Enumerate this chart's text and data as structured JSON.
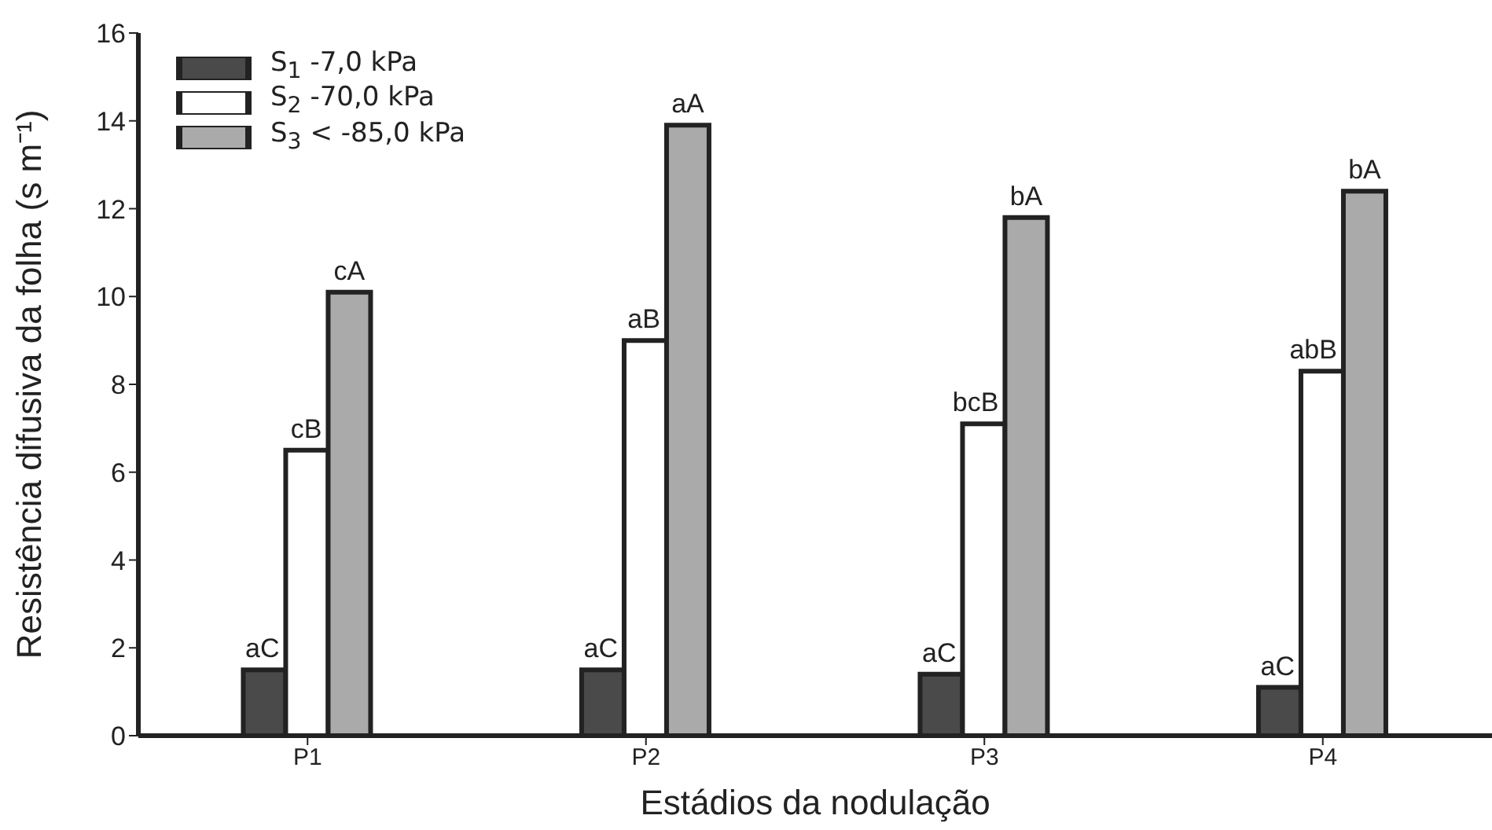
{
  "chart_data": {
    "type": "bar",
    "xlabel": "Estádios da nodulação",
    "ylabel": "Resistência difusiva da folha (s m⁻¹)",
    "categories": [
      "P1",
      "P2",
      "P3",
      "P4"
    ],
    "series": [
      {
        "name": "S$_{1}$ -7,0 kPa",
        "color": "#4a4a4a",
        "values": [
          1.5,
          1.5,
          1.4,
          1.1
        ],
        "value_labels": [
          "aC",
          "aC",
          "aC",
          "aC"
        ]
      },
      {
        "name": "S$_{2}$ -70,0 kPa",
        "color": "#ffffff",
        "values": [
          6.5,
          9.0,
          7.1,
          8.3
        ],
        "value_labels": [
          "cB",
          "aB",
          "bcB",
          "abB"
        ]
      },
      {
        "name": "S$_{3}$ < -85,0 kPa",
        "color": "#aaaaaa",
        "values": [
          10.1,
          13.9,
          11.8,
          12.4
        ],
        "value_labels": [
          "cA",
          "aA",
          "bA",
          "bA"
        ]
      }
    ],
    "ylim": [
      0,
      16
    ],
    "yticks": [
      0,
      2,
      4,
      6,
      8,
      10,
      12,
      14,
      16
    ],
    "grid": false,
    "legend": "top left"
  }
}
